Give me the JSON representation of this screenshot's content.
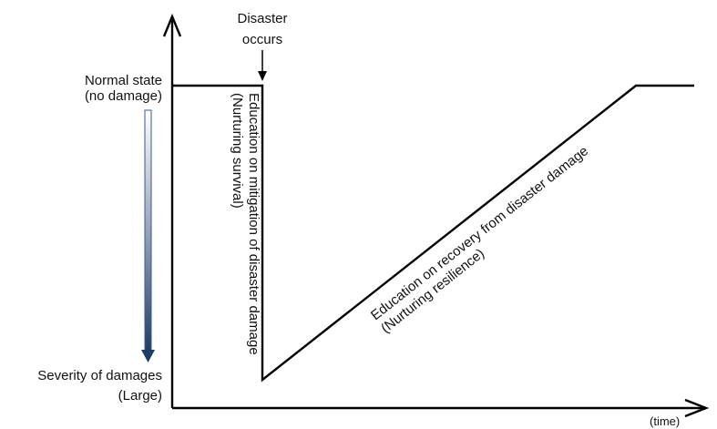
{
  "labels": {
    "normal_state_line1": "Normal state",
    "normal_state_line2": "(no damage)",
    "severity_line1": "Severity of damages",
    "severity_line2": "(Large)",
    "disaster_line1": "Disaster",
    "disaster_line2": "occurs",
    "time": "(time)",
    "mitigation_line1": "Education on mitigation of disaster damage",
    "mitigation_line2": "(Nurturing survival)",
    "recovery_line1": "Education on recovery from disaster damage",
    "recovery_line2": "(Nurturing resilience)"
  },
  "colors": {
    "line": "#000000",
    "severity_gradient_top": "#ffffff",
    "severity_gradient_bottom": "#1f3d66"
  }
}
